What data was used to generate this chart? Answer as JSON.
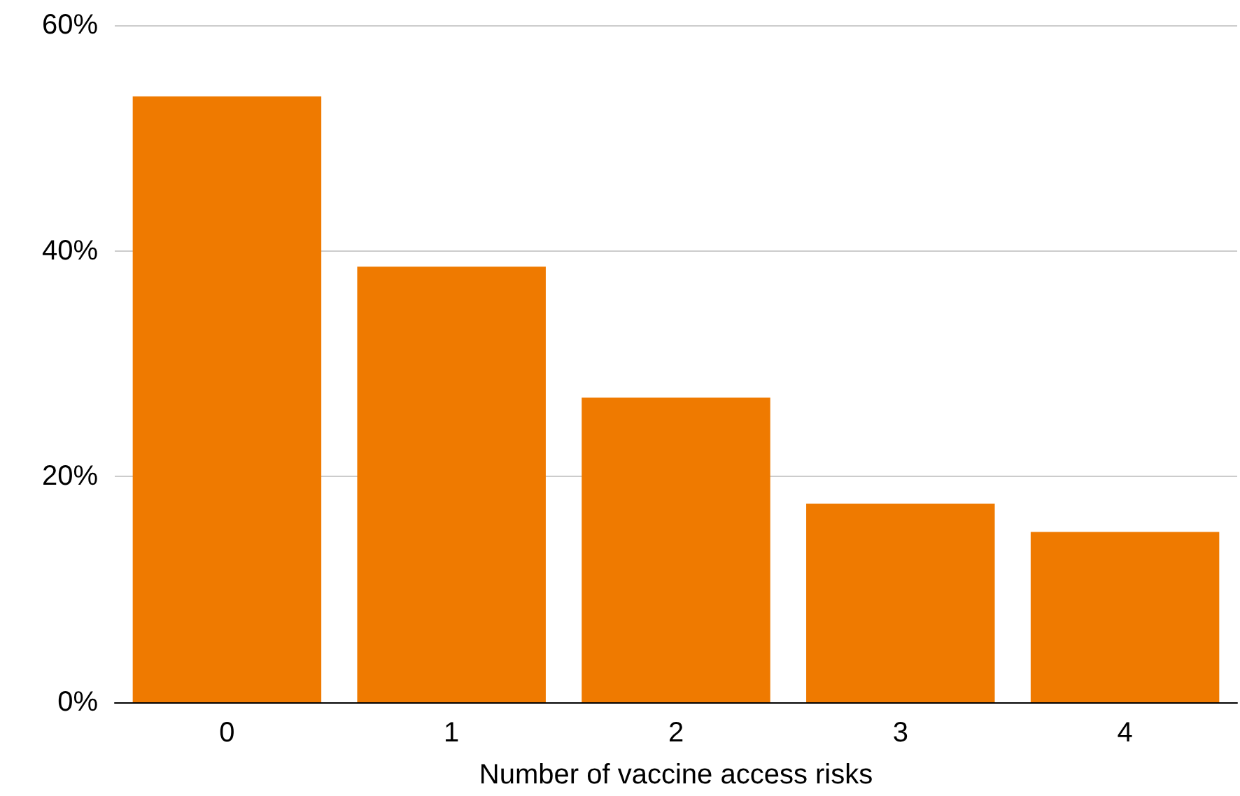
{
  "chart_data": {
    "type": "bar",
    "xlabel": "Number of vaccine access risks",
    "categories": [
      "0",
      "1",
      "2",
      "3",
      "4"
    ],
    "values": [
      53.7,
      38.6,
      27.0,
      17.6,
      15.1
    ],
    "color": "#ef7a00",
    "ylim": [
      0,
      60
    ],
    "yticks": [
      {
        "value": 0,
        "label": "0%"
      },
      {
        "value": 20,
        "label": "20%"
      },
      {
        "value": 40,
        "label": "40%"
      },
      {
        "value": 60,
        "label": "60%"
      }
    ],
    "grid": "y"
  }
}
